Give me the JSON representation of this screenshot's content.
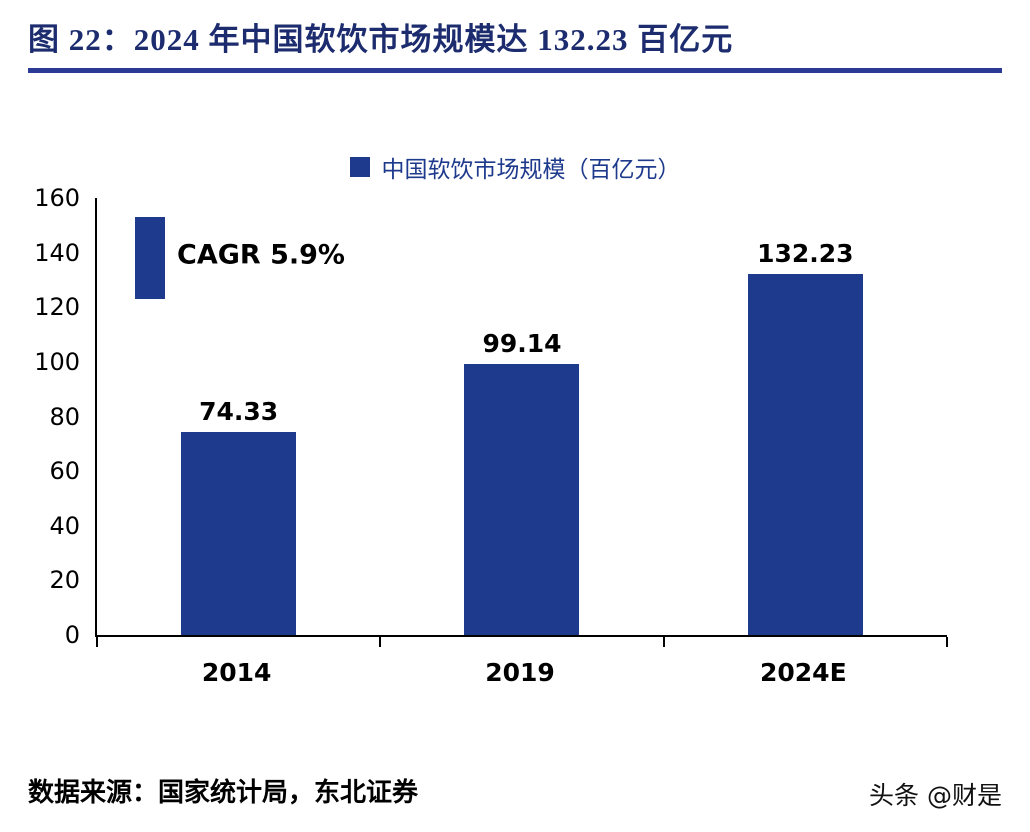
{
  "header": {
    "title": "图 22：2024 年中国软饮市场规模达 132.23 百亿元"
  },
  "legend": {
    "label": "中国软饮市场规模（百亿元）"
  },
  "colors": {
    "bar": "#1E3A8D",
    "title": "#1C2C6E",
    "rule": "#2B3A94",
    "legend_text": "#1E3A8D"
  },
  "chart_data": {
    "type": "bar",
    "title": "中国软饮市场规模（百亿元）",
    "categories": [
      "2014",
      "2019",
      "2024E"
    ],
    "values": [
      74.33,
      99.14,
      132.23
    ],
    "value_labels": [
      "74.33",
      "99.14",
      "132.23"
    ],
    "xlabel": "",
    "ylabel": "",
    "ylim": [
      0,
      160
    ],
    "yticks": [
      0,
      20,
      40,
      60,
      80,
      100,
      120,
      140,
      160
    ],
    "grid": false,
    "legend_position": "top",
    "annotation": {
      "text": "CAGR 5.9%",
      "bar_span": [
        123,
        153
      ],
      "text_y": 139
    }
  },
  "footer": {
    "source": "数据来源：国家统计局，东北证券",
    "watermark": "头条 @财是"
  }
}
